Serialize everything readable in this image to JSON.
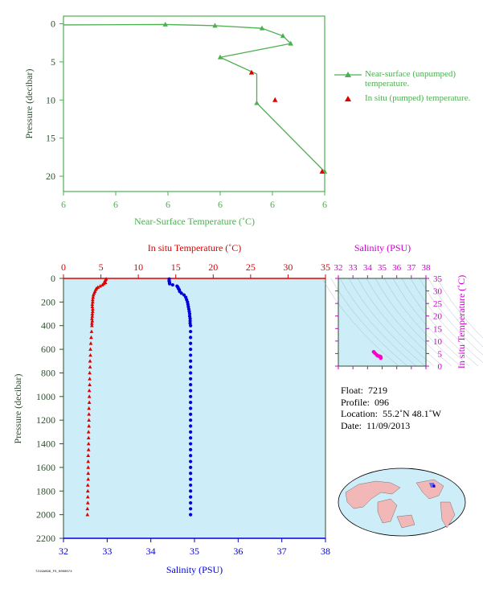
{
  "chart_data": [
    {
      "type": "line",
      "name": "near-surface-profile",
      "xlabel": "Near-Surface Temperature (˚C)",
      "ylabel": "Pressure (decibar)",
      "xticks": [
        "6",
        "6",
        "6",
        "6",
        "6",
        "6"
      ],
      "yticks": [
        "0",
        "5",
        "10",
        "15",
        "20"
      ],
      "ylim": [
        0,
        22
      ],
      "series": [
        {
          "name": "Near-surface (unpumped) temperature.",
          "color": "#4caf50",
          "marker": "triangle",
          "x": [
            0.0,
            1.95,
            2.9,
            3.8,
            4.2,
            4.35,
            3.0,
            3.7,
            3.7,
            3.7,
            5.0
          ],
          "y": [
            0.15,
            0.1,
            0.25,
            0.6,
            1.6,
            2.6,
            4.4,
            6.6,
            6.6,
            10.4,
            19.4
          ],
          "markers_at": [
            1,
            2,
            3,
            4,
            5,
            6,
            9,
            10
          ]
        },
        {
          "name": "In situ (pumped) temperature.",
          "color": "#e00000",
          "marker": "triangle",
          "x": [
            3.6,
            4.05,
            4.95
          ],
          "y": [
            6.4,
            10.0,
            19.4
          ]
        }
      ]
    },
    {
      "type": "scatter",
      "name": "main-profile",
      "xlabel": "Salinity (PSU)",
      "x2label": "In situ Temperature (˚C)",
      "ylabel": "Pressure (decibar)",
      "xlim": [
        32,
        38
      ],
      "x2lim": [
        0,
        35
      ],
      "ylim": [
        0,
        2200
      ],
      "xticks": [
        "32",
        "33",
        "34",
        "35",
        "36",
        "37",
        "38"
      ],
      "x2ticks": [
        "0",
        "5",
        "10",
        "15",
        "20",
        "25",
        "30",
        "35"
      ],
      "yticks": [
        "0",
        "200",
        "400",
        "600",
        "800",
        "1000",
        "1200",
        "1400",
        "1600",
        "1800",
        "2000",
        "2200"
      ],
      "series": [
        {
          "name": "In situ Temperature",
          "color": "#e00000",
          "marker": "triangle",
          "p": [
            5,
            15,
            25,
            35,
            45,
            55,
            65,
            75,
            85,
            95,
            110,
            125,
            140,
            160,
            180,
            200,
            220,
            240,
            260,
            280,
            300,
            320,
            340,
            360,
            380,
            400,
            450,
            500,
            550,
            600,
            650,
            700,
            750,
            800,
            850,
            900,
            950,
            1000,
            1050,
            1100,
            1150,
            1200,
            1250,
            1300,
            1350,
            1400,
            1450,
            1500,
            1550,
            1600,
            1650,
            1700,
            1750,
            1800,
            1850,
            1900,
            1950,
            2000
          ],
          "t": [
            5.7,
            5.6,
            5.5,
            5.6,
            5.4,
            5.2,
            4.9,
            4.6,
            4.4,
            4.3,
            4.2,
            4.1,
            4.0,
            3.95,
            3.9,
            3.9,
            3.85,
            3.85,
            3.9,
            3.9,
            3.85,
            3.85,
            3.8,
            3.85,
            3.8,
            3.8,
            3.75,
            3.7,
            3.65,
            3.6,
            3.6,
            3.55,
            3.55,
            3.5,
            3.5,
            3.5,
            3.45,
            3.45,
            3.45,
            3.4,
            3.4,
            3.4,
            3.4,
            3.35,
            3.35,
            3.35,
            3.35,
            3.3,
            3.3,
            3.3,
            3.3,
            3.3,
            3.25,
            3.25,
            3.25,
            3.25,
            3.2,
            3.2
          ]
        },
        {
          "name": "Salinity",
          "color": "#0000dd",
          "marker": "circle",
          "p": [
            5,
            15,
            25,
            35,
            45,
            55,
            65,
            75,
            85,
            95,
            110,
            125,
            140,
            160,
            180,
            200,
            220,
            240,
            260,
            280,
            300,
            320,
            340,
            360,
            380,
            400,
            450,
            500,
            550,
            600,
            650,
            700,
            750,
            800,
            850,
            900,
            950,
            1000,
            1050,
            1100,
            1150,
            1200,
            1250,
            1300,
            1350,
            1400,
            1450,
            1500,
            1550,
            1600,
            1650,
            1700,
            1750,
            1800,
            1850,
            1900,
            1950,
            2000
          ],
          "s": [
            34.42,
            34.42,
            34.42,
            34.43,
            34.43,
            34.5,
            34.6,
            34.62,
            34.63,
            34.65,
            34.66,
            34.7,
            34.76,
            34.8,
            34.82,
            34.84,
            34.85,
            34.86,
            34.87,
            34.88,
            34.89,
            34.89,
            34.9,
            34.9,
            34.9,
            34.91,
            34.91,
            34.91,
            34.91,
            34.91,
            34.91,
            34.91,
            34.91,
            34.91,
            34.91,
            34.91,
            34.91,
            34.91,
            34.91,
            34.91,
            34.91,
            34.91,
            34.91,
            34.91,
            34.91,
            34.91,
            34.91,
            34.91,
            34.91,
            34.91,
            34.91,
            34.91,
            34.91,
            34.91,
            34.91,
            34.91,
            34.91,
            34.91
          ]
        }
      ]
    },
    {
      "type": "scatter",
      "name": "ts-diagram",
      "xlabel": "Salinity (PSU)",
      "ylabel": "In situ Temperature (˚C)",
      "xlim": [
        32,
        38
      ],
      "ylim": [
        0,
        35
      ],
      "xticks": [
        "32",
        "33",
        "34",
        "35",
        "36",
        "37",
        "38"
      ],
      "yticks": [
        "0",
        "5",
        "10",
        "15",
        "20",
        "25",
        "30",
        "35"
      ],
      "series": [
        {
          "name": "T-S points",
          "color": "#ff00cc",
          "s": [
            34.42,
            34.5,
            34.62,
            34.7,
            34.8,
            34.85,
            34.88,
            34.9,
            34.91,
            34.91
          ],
          "t": [
            5.7,
            5.2,
            4.5,
            4.1,
            3.95,
            3.85,
            3.8,
            3.6,
            3.4,
            3.2
          ]
        }
      ]
    }
  ],
  "info": {
    "float_label": "Float:",
    "float_value": "7219",
    "profile_label": "Profile:",
    "profile_value": "096",
    "location_label": "Location:",
    "location_value": "55.2˚N  48.1˚W",
    "date_label": "Date:",
    "date_value": "11/09/2013"
  },
  "legend": {
    "near_surface": "Near-surface (unpumped) temperature.",
    "in_situ": "In situ (pumped) temperature."
  },
  "colors": {
    "green": "#4caf50",
    "red": "#e00000",
    "blue": "#0000dd",
    "magenta": "#cc00cc",
    "panel_bg": "#cdeef8",
    "axis_dark": "#2f4f2f"
  },
  "footer_code": "7219A096_FS_0000074"
}
